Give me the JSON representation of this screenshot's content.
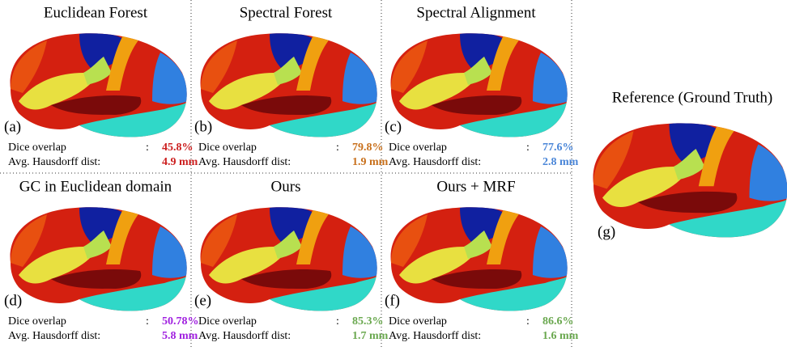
{
  "panels": [
    {
      "title": "Euclidean Forest",
      "label": "(a)",
      "dice_label": "Dice overlap",
      "dice_sep": ":",
      "dice": "45.8%",
      "hausdorff_label": "Avg. Hausdorff dist:",
      "hausdorff": "4.9 mm",
      "color": "#cc1f1f"
    },
    {
      "title": "Spectral Forest",
      "label": "(b)",
      "dice_label": "Dice overlap",
      "dice_sep": ":",
      "dice": "79.8%",
      "hausdorff_label": "Avg. Hausdorff dist:",
      "hausdorff": "1.9 mm",
      "color": "#c8701c"
    },
    {
      "title": "Spectral Alignment",
      "label": "(c)",
      "dice_label": "Dice overlap",
      "dice_sep": ":",
      "dice": "77.6%",
      "hausdorff_label": "Avg. Hausdorff dist:",
      "hausdorff": "2.8 mm",
      "color": "#4a86d8"
    },
    {
      "title": "GC in Euclidean domain",
      "label": "(d)",
      "dice_label": "Dice overlap",
      "dice_sep": ":",
      "dice": "50.78%",
      "hausdorff_label": "Avg. Hausdorff dist:",
      "hausdorff": "5.8 mm",
      "color": "#a020e0"
    },
    {
      "title": "Ours",
      "label": "(e)",
      "dice_label": "Dice overlap",
      "dice_sep": ":",
      "dice": "85.3%",
      "hausdorff_label": "Avg. Hausdorff dist:",
      "hausdorff": "1.7 mm",
      "color": "#6aa84f"
    },
    {
      "title": "Ours + MRF",
      "label": "(f)",
      "dice_label": "Dice overlap",
      "dice_sep": ":",
      "dice": "86.6%",
      "hausdorff_label": "Avg. Hausdorff dist:",
      "hausdorff": "1.6 mm",
      "color": "#6aa84f"
    }
  ],
  "reference": {
    "title": "Reference (Ground Truth)",
    "label": "(g)"
  }
}
